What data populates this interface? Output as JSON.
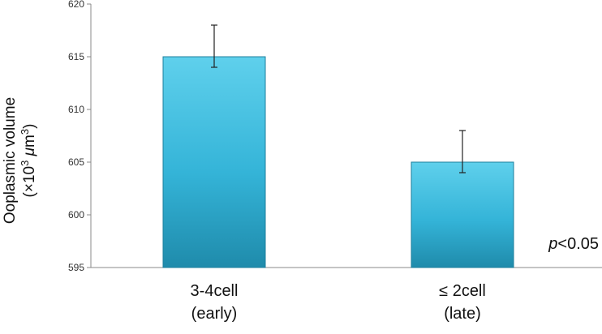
{
  "chart_data": {
    "type": "bar",
    "categories": [
      [
        "3-4cell",
        "(early)"
      ],
      [
        "≤ 2cell",
        "(late)"
      ]
    ],
    "values": [
      615,
      605
    ],
    "errors": [
      {
        "low": 614,
        "high": 618
      },
      {
        "low": 604,
        "high": 608
      }
    ],
    "ylabel_line1": "Ooplasmic volume",
    "ylabel_line2": [
      "(×10",
      "3",
      " μ",
      "m",
      "3",
      ")"
    ],
    "ylim": [
      595,
      620
    ],
    "yticks": [
      595,
      600,
      605,
      610,
      615,
      620
    ],
    "annotation": [
      "p",
      "<0.05"
    ],
    "grid": false,
    "colors": {
      "bar_top": "#5fd0ec",
      "bar_mid": "#34b4d8",
      "bar_bottom": "#1f8bab",
      "bar_edge": "#1d7f9c",
      "axis": "#888888",
      "error": "#222222"
    }
  }
}
